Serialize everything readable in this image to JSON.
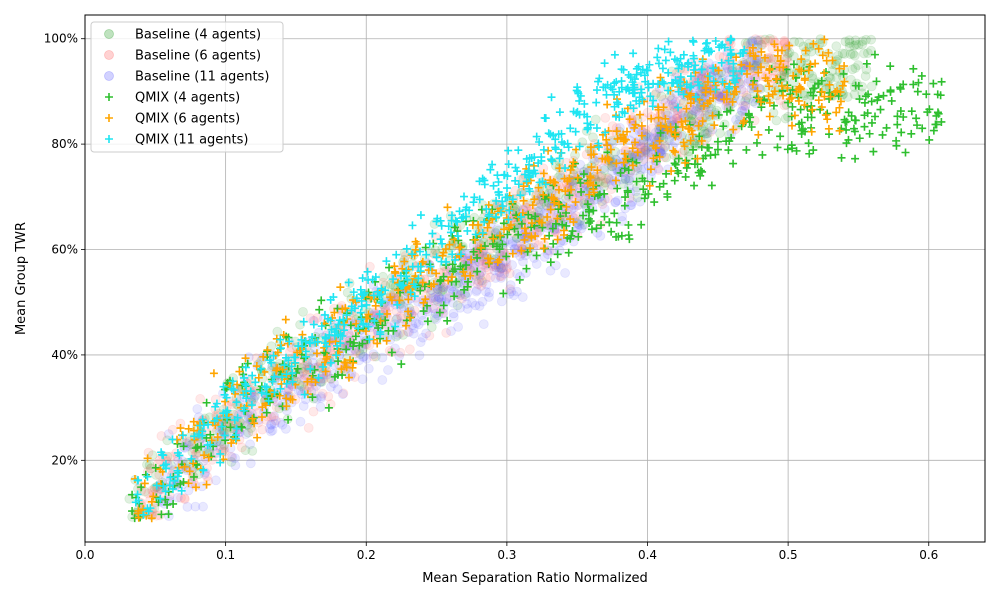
{
  "chart_data": {
    "type": "scatter",
    "title": "",
    "xlabel": "Mean Separation Ratio Normalized",
    "ylabel": "Mean Group TWR",
    "xlim": [
      0.0,
      0.64
    ],
    "ylim": [
      0.045,
      1.045
    ],
    "xticks": [
      0.0,
      0.1,
      0.2,
      0.3,
      0.4,
      0.5,
      0.6
    ],
    "xtick_labels": [
      "0.0",
      "0.1",
      "0.2",
      "0.3",
      "0.4",
      "0.5",
      "0.6"
    ],
    "yticks": [
      0.2,
      0.4,
      0.6,
      0.8,
      1.0
    ],
    "ytick_labels": [
      "20%",
      "40%",
      "60%",
      "80%",
      "100%"
    ],
    "grid": true,
    "legend_position": "top-left",
    "series": [
      {
        "name": "Baseline (4 agents)",
        "marker": "circle",
        "color": "#2ca02c",
        "alpha": 0.15,
        "n": 700,
        "seed": 11,
        "xrange": [
          0.03,
          0.56
        ],
        "cap": 1.0,
        "spread": 0.07,
        "anchors": [
          [
            0.03,
            0.11
          ],
          [
            0.1,
            0.28
          ],
          [
            0.2,
            0.47
          ],
          [
            0.3,
            0.64
          ],
          [
            0.4,
            0.8
          ],
          [
            0.47,
            0.93
          ],
          [
            0.56,
            0.96
          ]
        ]
      },
      {
        "name": "Baseline (6 agents)",
        "marker": "circle",
        "color": "#ff6b6b",
        "alpha": 0.15,
        "n": 700,
        "seed": 23,
        "xrange": [
          0.035,
          0.5
        ],
        "cap": 1.0,
        "spread": 0.07,
        "anchors": [
          [
            0.035,
            0.1
          ],
          [
            0.1,
            0.27
          ],
          [
            0.2,
            0.45
          ],
          [
            0.3,
            0.62
          ],
          [
            0.4,
            0.82
          ],
          [
            0.45,
            0.92
          ],
          [
            0.5,
            0.97
          ]
        ]
      },
      {
        "name": "Baseline (11 agents)",
        "marker": "circle",
        "color": "#6b6bff",
        "alpha": 0.15,
        "n": 700,
        "seed": 37,
        "xrange": [
          0.05,
          0.48
        ],
        "cap": 1.0,
        "spread": 0.075,
        "anchors": [
          [
            0.05,
            0.13
          ],
          [
            0.1,
            0.26
          ],
          [
            0.2,
            0.43
          ],
          [
            0.3,
            0.58
          ],
          [
            0.38,
            0.74
          ],
          [
            0.43,
            0.88
          ],
          [
            0.48,
            0.95
          ]
        ]
      },
      {
        "name": "QMIX (4 agents)",
        "marker": "plus",
        "color": "#2ebf2e",
        "alpha": 1.0,
        "n": 520,
        "seed": 53,
        "xrange": [
          0.028,
          0.61
        ],
        "cap": 1.0,
        "spread": 0.075,
        "anchors": [
          [
            0.028,
            0.1
          ],
          [
            0.1,
            0.28
          ],
          [
            0.2,
            0.46
          ],
          [
            0.3,
            0.63
          ],
          [
            0.4,
            0.72
          ],
          [
            0.48,
            0.85
          ],
          [
            0.61,
            0.88
          ]
        ]
      },
      {
        "name": "QMIX (6 agents)",
        "marker": "plus",
        "color": "#ffa500",
        "alpha": 1.0,
        "n": 520,
        "seed": 71,
        "xrange": [
          0.035,
          0.545
        ],
        "cap": 1.0,
        "spread": 0.075,
        "anchors": [
          [
            0.035,
            0.12
          ],
          [
            0.1,
            0.28
          ],
          [
            0.2,
            0.47
          ],
          [
            0.3,
            0.66
          ],
          [
            0.4,
            0.82
          ],
          [
            0.47,
            0.92
          ],
          [
            0.545,
            0.92
          ]
        ]
      },
      {
        "name": "QMIX (11 agents)",
        "marker": "plus",
        "color": "#1ee5f2",
        "alpha": 1.0,
        "n": 520,
        "seed": 89,
        "xrange": [
          0.035,
          0.47
        ],
        "cap": 1.0,
        "spread": 0.06,
        "anchors": [
          [
            0.035,
            0.12
          ],
          [
            0.1,
            0.28
          ],
          [
            0.2,
            0.5
          ],
          [
            0.3,
            0.72
          ],
          [
            0.35,
            0.85
          ],
          [
            0.4,
            0.93
          ],
          [
            0.47,
            0.98
          ]
        ]
      }
    ]
  }
}
